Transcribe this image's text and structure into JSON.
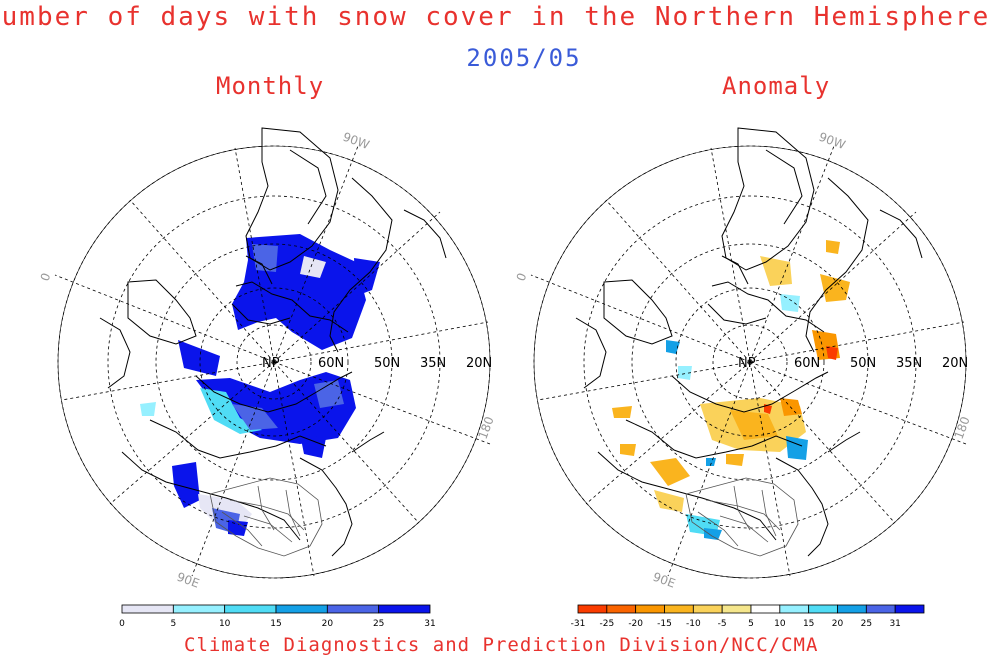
{
  "title": "number of days  with snow cover in the Northern Hemisphere",
  "date": "2005/05",
  "footer": "Climate Diagnostics and Prediction Division/NCC/CMA",
  "panels": [
    {
      "title": "Monthly",
      "pole_label": "NP",
      "lat_labels": [
        "60N",
        "50N",
        "35N",
        "20N"
      ],
      "lon_labels": [
        "0",
        "90W",
        "180",
        "90E"
      ],
      "colorbar": {
        "tick_labels": [
          "0",
          "5",
          "10",
          "15",
          "20",
          "25",
          "31"
        ],
        "colors": [
          "#e6e6f5",
          "#96f0ff",
          "#50dcf5",
          "#14a0e6",
          "#4b64e6",
          "#0a14eb"
        ]
      }
    },
    {
      "title": "Anomaly",
      "pole_label": "NP",
      "lat_labels": [
        "60N",
        "50N",
        "35N",
        "20N"
      ],
      "lon_labels": [
        "0",
        "90W",
        "180",
        "90E"
      ],
      "colorbar": {
        "tick_labels": [
          "-31",
          "-25",
          "-20",
          "-15",
          "-10",
          "-5",
          "5",
          "10",
          "15",
          "20",
          "25",
          "31"
        ],
        "colors": [
          "#fa3c00",
          "#fa6400",
          "#fa9600",
          "#fab41e",
          "#fad25a",
          "#f5e68c",
          "#ffffff",
          "#96f0ff",
          "#50dcf5",
          "#14a0e6",
          "#4b64e6",
          "#0a14eb"
        ]
      }
    }
  ]
}
